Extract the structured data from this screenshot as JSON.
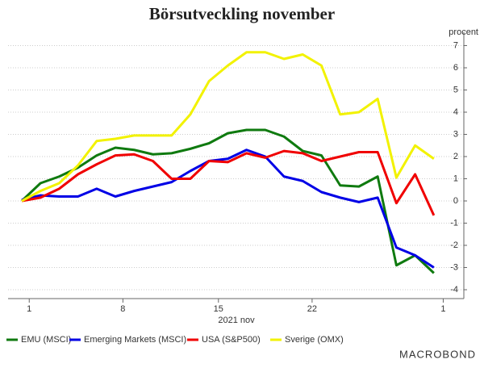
{
  "chart_data": {
    "type": "line",
    "title": "Börsutveckling november",
    "y_axis_label": "procent",
    "x_axis_label": "2021 nov",
    "brand": "MACROBOND",
    "x": [
      0,
      1,
      2,
      3,
      4,
      5,
      6,
      7,
      8,
      9,
      10,
      11,
      12,
      13,
      14,
      15,
      16,
      17,
      18,
      19,
      20,
      21,
      22
    ],
    "xlim": [
      -0.73,
      23.6
    ],
    "xticks": [
      {
        "value": 0.4,
        "label": "1"
      },
      {
        "value": 5.4,
        "label": "8"
      },
      {
        "value": 10.5,
        "label": "15"
      },
      {
        "value": 15.5,
        "label": "22"
      },
      {
        "value": 22.5,
        "label": "1"
      }
    ],
    "ylim": [
      -4.4,
      7.6
    ],
    "yticks": [
      -4,
      -3,
      -2,
      -1,
      0,
      1,
      2,
      3,
      4,
      5,
      6,
      7
    ],
    "grid": true,
    "legend": "bottom",
    "series": [
      {
        "name": "EMU (MSCI)",
        "color": "#0f7a0f",
        "values": [
          0,
          0.8,
          1.1,
          1.5,
          2.05,
          2.4,
          2.3,
          2.1,
          2.15,
          2.35,
          2.6,
          3.05,
          3.2,
          3.2,
          2.9,
          2.25,
          2.05,
          0.7,
          0.65,
          1.1,
          -2.9,
          -2.45,
          -3.25
        ]
      },
      {
        "name": "Emerging Markets (MSCI)",
        "color": "#0000e6",
        "values": [
          0.05,
          0.25,
          0.2,
          0.2,
          0.55,
          0.2,
          0.45,
          0.65,
          0.85,
          1.35,
          1.8,
          1.9,
          2.3,
          2.0,
          1.1,
          0.9,
          0.4,
          0.15,
          -0.05,
          0.15,
          -2.1,
          -2.45,
          -3.0
        ]
      },
      {
        "name": "USA (S&P500)",
        "color": "#f00000",
        "values": [
          0,
          0.15,
          0.55,
          1.2,
          1.65,
          2.05,
          2.1,
          1.8,
          1.0,
          1.0,
          1.8,
          1.75,
          2.15,
          1.95,
          2.25,
          2.15,
          1.8,
          2.0,
          2.2,
          2.2,
          -0.1,
          1.2,
          -0.65
        ]
      },
      {
        "name": "Sverige (OMX)",
        "color": "#f2f200",
        "values": [
          0,
          0.45,
          0.8,
          1.6,
          2.7,
          2.8,
          2.95,
          2.95,
          2.95,
          3.9,
          5.4,
          6.1,
          6.7,
          6.7,
          6.4,
          6.6,
          6.1,
          3.9,
          4.0,
          4.6,
          1.05,
          2.5,
          1.9
        ]
      }
    ]
  }
}
